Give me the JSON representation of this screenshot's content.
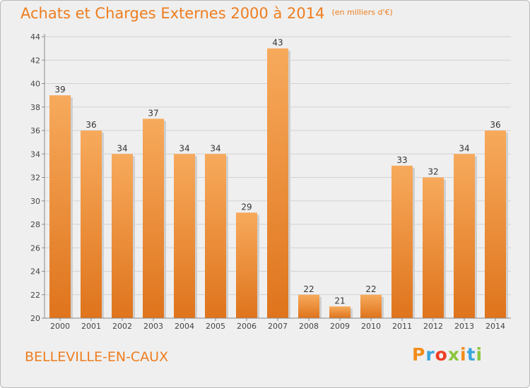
{
  "header": {
    "title": "Achats et Charges Externes 2000 à 2014",
    "unit": "(en milliers d'€)"
  },
  "footer": {
    "location": "BELLEVILLE-EN-CAUX",
    "brand": "Proxiti",
    "brand_colors": [
      "#f28c1c",
      "#3aa6dd",
      "#ee3d23",
      "#8cc63f",
      "#f28c1c",
      "#3aa6dd",
      "#8cc63f"
    ]
  },
  "colors": {
    "accent": "#ee7d1e",
    "bar_light": "#f6a95a",
    "bar_dark": "#e0761d",
    "background": "#efefef"
  },
  "chart_data": {
    "type": "bar",
    "categories": [
      "2000",
      "2001",
      "2002",
      "2003",
      "2004",
      "2005",
      "2006",
      "2007",
      "2008",
      "2009",
      "2010",
      "2011",
      "2012",
      "2013",
      "2014"
    ],
    "values": [
      39,
      36,
      34,
      37,
      34,
      34,
      29,
      43,
      22,
      21,
      22,
      33,
      32,
      34,
      36
    ],
    "title": "Achats et Charges Externes 2000 à 2014",
    "ylim": [
      20,
      44
    ],
    "yticks": [
      20,
      22,
      24,
      26,
      28,
      30,
      32,
      34,
      36,
      38,
      40,
      42,
      44
    ],
    "grid": true,
    "data_labels": true
  }
}
